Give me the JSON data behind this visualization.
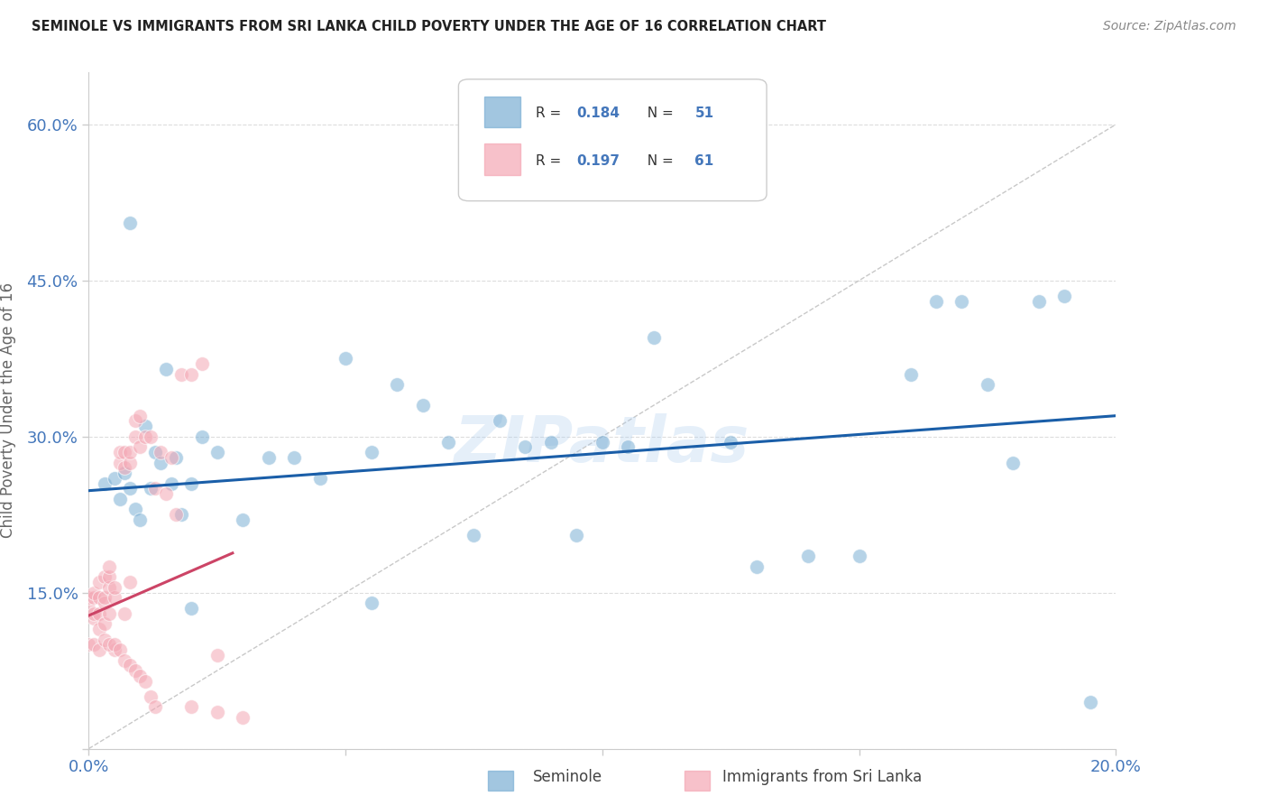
{
  "title": "SEMINOLE VS IMMIGRANTS FROM SRI LANKA CHILD POVERTY UNDER THE AGE OF 16 CORRELATION CHART",
  "source": "Source: ZipAtlas.com",
  "ylabel": "Child Poverty Under the Age of 16",
  "xlim": [
    0.0,
    0.2
  ],
  "ylim": [
    0.0,
    0.65
  ],
  "xticks": [
    0.0,
    0.05,
    0.1,
    0.15,
    0.2
  ],
  "xticklabels": [
    "0.0%",
    "",
    "",
    "",
    "20.0%"
  ],
  "yticks": [
    0.0,
    0.15,
    0.3,
    0.45,
    0.6
  ],
  "yticklabels": [
    "",
    "15.0%",
    "30.0%",
    "45.0%",
    "60.0%"
  ],
  "blue_color": "#7BAFD4",
  "pink_color": "#F4A7B4",
  "tick_color": "#4477BB",
  "blue_trend_color": "#1A5EA8",
  "pink_trend_color": "#CC4466",
  "ref_line_color": "#BBBBBB",
  "grid_color": "#DDDDDD",
  "blue_points_x": [
    0.003,
    0.005,
    0.006,
    0.007,
    0.008,
    0.009,
    0.01,
    0.011,
    0.012,
    0.013,
    0.014,
    0.015,
    0.016,
    0.017,
    0.018,
    0.02,
    0.022,
    0.025,
    0.03,
    0.035,
    0.04,
    0.045,
    0.05,
    0.055,
    0.06,
    0.065,
    0.07,
    0.075,
    0.08,
    0.085,
    0.09,
    0.095,
    0.1,
    0.105,
    0.11,
    0.12,
    0.125,
    0.13,
    0.14,
    0.15,
    0.16,
    0.165,
    0.17,
    0.175,
    0.18,
    0.185,
    0.19,
    0.195,
    0.008,
    0.02,
    0.055
  ],
  "blue_points_y": [
    0.255,
    0.26,
    0.24,
    0.265,
    0.25,
    0.23,
    0.22,
    0.31,
    0.25,
    0.285,
    0.275,
    0.365,
    0.255,
    0.28,
    0.225,
    0.255,
    0.3,
    0.285,
    0.22,
    0.28,
    0.28,
    0.26,
    0.375,
    0.285,
    0.35,
    0.33,
    0.295,
    0.205,
    0.315,
    0.29,
    0.295,
    0.205,
    0.295,
    0.29,
    0.395,
    0.54,
    0.295,
    0.175,
    0.185,
    0.185,
    0.36,
    0.43,
    0.43,
    0.35,
    0.275,
    0.43,
    0.435,
    0.045,
    0.505,
    0.135,
    0.14
  ],
  "pink_points_x": [
    0.0,
    0.0,
    0.001,
    0.001,
    0.001,
    0.001,
    0.002,
    0.002,
    0.002,
    0.002,
    0.003,
    0.003,
    0.003,
    0.003,
    0.004,
    0.004,
    0.004,
    0.004,
    0.005,
    0.005,
    0.005,
    0.006,
    0.006,
    0.007,
    0.007,
    0.007,
    0.008,
    0.008,
    0.008,
    0.009,
    0.009,
    0.01,
    0.01,
    0.011,
    0.012,
    0.013,
    0.014,
    0.015,
    0.016,
    0.017,
    0.018,
    0.02,
    0.022,
    0.025,
    0.0,
    0.001,
    0.002,
    0.003,
    0.004,
    0.005,
    0.006,
    0.007,
    0.008,
    0.009,
    0.01,
    0.011,
    0.012,
    0.013,
    0.02,
    0.025,
    0.03
  ],
  "pink_points_y": [
    0.135,
    0.145,
    0.125,
    0.145,
    0.15,
    0.13,
    0.13,
    0.145,
    0.16,
    0.115,
    0.14,
    0.145,
    0.165,
    0.12,
    0.155,
    0.165,
    0.175,
    0.13,
    0.145,
    0.155,
    0.095,
    0.275,
    0.285,
    0.27,
    0.285,
    0.13,
    0.275,
    0.285,
    0.16,
    0.315,
    0.3,
    0.32,
    0.29,
    0.3,
    0.3,
    0.25,
    0.285,
    0.245,
    0.28,
    0.225,
    0.36,
    0.36,
    0.37,
    0.09,
    0.1,
    0.1,
    0.095,
    0.105,
    0.1,
    0.1,
    0.095,
    0.085,
    0.08,
    0.075,
    0.07,
    0.065,
    0.05,
    0.04,
    0.04,
    0.035,
    0.03
  ],
  "blue_trend_x": [
    0.0,
    0.2
  ],
  "blue_trend_y": [
    0.248,
    0.32
  ],
  "pink_trend_x": [
    0.0,
    0.028
  ],
  "pink_trend_y": [
    0.128,
    0.188
  ],
  "ref_line_x": [
    0.0,
    0.2
  ],
  "ref_line_y": [
    0.0,
    0.6
  ],
  "watermark": "ZIPatlas",
  "background_color": "#FFFFFF"
}
